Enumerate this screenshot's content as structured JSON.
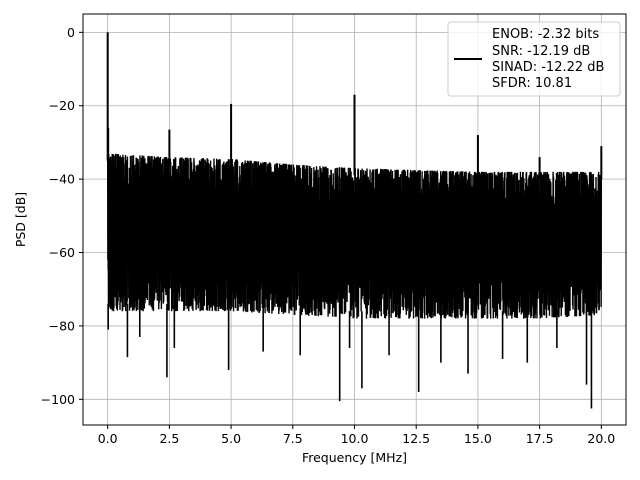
{
  "chart_data": {
    "type": "line",
    "title": "",
    "xlabel": "Frequency [MHz]",
    "ylabel": "PSD [dB]",
    "xlim": [
      -1.0,
      21.0
    ],
    "ylim": [
      -107,
      5
    ],
    "xticks": [
      0.0,
      2.5,
      5.0,
      7.5,
      10.0,
      12.5,
      15.0,
      17.5,
      20.0
    ],
    "xtick_labels": [
      "0.0",
      "2.5",
      "5.0",
      "7.5",
      "10.0",
      "12.5",
      "15.0",
      "17.5",
      "20.0"
    ],
    "yticks": [
      0,
      -20,
      -40,
      -60,
      -80,
      -100
    ],
    "ytick_labels": [
      "0",
      "−20",
      "−40",
      "−60",
      "−80",
      "−100"
    ],
    "grid": true,
    "legend_position": "top-right",
    "legend_entries": [
      "ENOB: -2.32 bits",
      "SNR: -12.19 dB",
      "SINAD: -12.22 dB",
      "SFDR: 10.81"
    ],
    "series": [
      {
        "color": "#000000",
        "noise_band": {
          "x_range": [
            0.0,
            20.0
          ],
          "upper_envelope": [
            [
              0.0,
              -33
            ],
            [
              2.5,
              -34
            ],
            [
              5.0,
              -34.5
            ],
            [
              7.5,
              -36
            ],
            [
              10.0,
              -37
            ],
            [
              12.5,
              -37.5
            ],
            [
              15.0,
              -38
            ],
            [
              17.5,
              -38
            ],
            [
              20.0,
              -38
            ]
          ],
          "lower_envelope": [
            [
              0.0,
              -76
            ],
            [
              2.5,
              -76
            ],
            [
              5.0,
              -76
            ],
            [
              7.5,
              -77
            ],
            [
              10.0,
              -78
            ],
            [
              12.5,
              -78
            ],
            [
              15.0,
              -78
            ],
            [
              17.5,
              -78
            ],
            [
              20.0,
              -77
            ]
          ]
        },
        "peaks": [
          {
            "x": 0.0,
            "y": 0.0
          },
          {
            "x": 0.02,
            "y": -26
          },
          {
            "x": 2.5,
            "y": -26.5
          },
          {
            "x": 5.0,
            "y": -19.5
          },
          {
            "x": 10.0,
            "y": -17
          },
          {
            "x": 15.0,
            "y": -28
          },
          {
            "x": 17.5,
            "y": -34
          },
          {
            "x": 20.0,
            "y": -31
          }
        ],
        "dips": [
          {
            "x": 0.02,
            "y": -81
          },
          {
            "x": 0.8,
            "y": -88.5
          },
          {
            "x": 1.3,
            "y": -83
          },
          {
            "x": 2.4,
            "y": -94
          },
          {
            "x": 2.7,
            "y": -86
          },
          {
            "x": 4.9,
            "y": -92
          },
          {
            "x": 6.3,
            "y": -87
          },
          {
            "x": 7.8,
            "y": -88
          },
          {
            "x": 9.4,
            "y": -100.5
          },
          {
            "x": 9.8,
            "y": -86
          },
          {
            "x": 10.3,
            "y": -97
          },
          {
            "x": 11.4,
            "y": -88
          },
          {
            "x": 12.6,
            "y": -98
          },
          {
            "x": 13.5,
            "y": -90
          },
          {
            "x": 14.6,
            "y": -93
          },
          {
            "x": 16.0,
            "y": -89
          },
          {
            "x": 17.0,
            "y": -90
          },
          {
            "x": 18.2,
            "y": -86
          },
          {
            "x": 19.4,
            "y": -96
          },
          {
            "x": 19.6,
            "y": -102.5
          }
        ]
      }
    ]
  }
}
